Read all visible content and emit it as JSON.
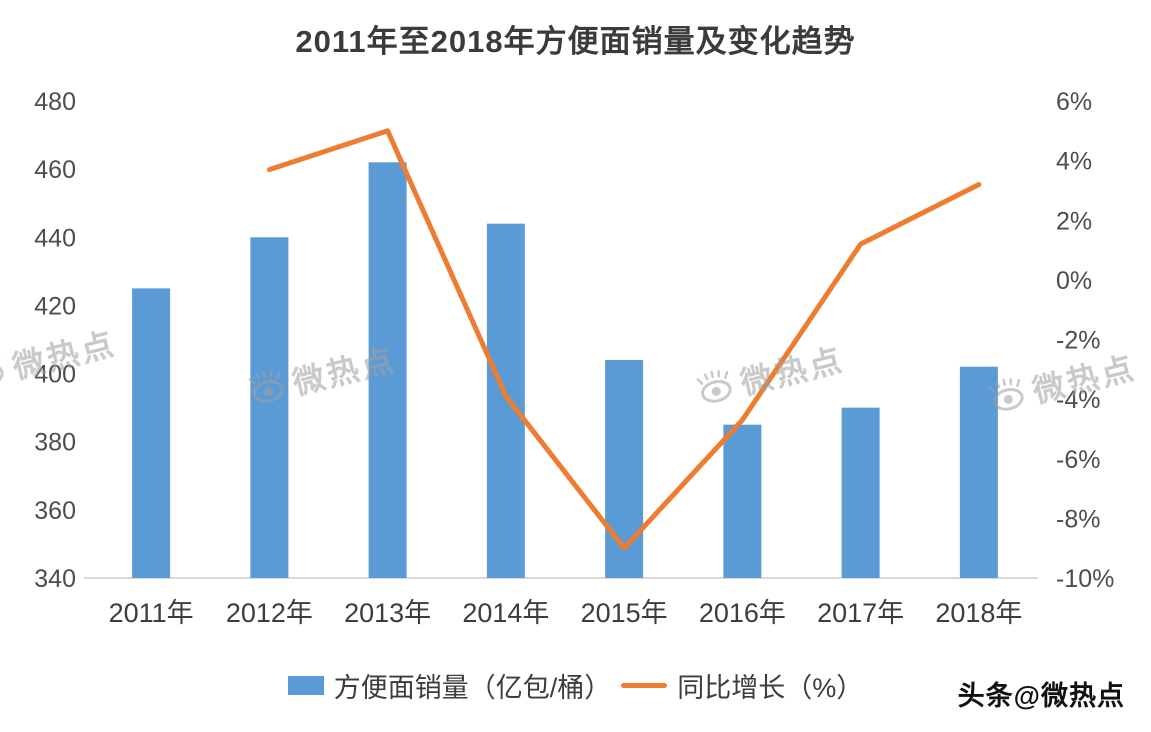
{
  "title": "2011年至2018年方便面销量及变化趋势",
  "watermark": {
    "text": "微热点"
  },
  "credit": "头条@微热点",
  "legend": {
    "sales_label": "方便面销量（亿包/桶）",
    "growth_label": "同比增长（%）"
  },
  "colors": {
    "bar": "#5B9BD5",
    "line": "#ED7D31",
    "axis_text": "#4d4d4d",
    "axis_line": "#d9d9d9"
  },
  "chart_data": {
    "type": "bar",
    "subtype": "bar+line combo, dual axis",
    "title": "2011年至2018年方便面销量及变化趋势",
    "categories": [
      "2011年",
      "2012年",
      "2013年",
      "2014年",
      "2015年",
      "2016年",
      "2017年",
      "2018年"
    ],
    "series": [
      {
        "name": "方便面销量（亿包/桶）",
        "type": "bar",
        "axis": "left",
        "color": "#5B9BD5",
        "values": [
          425,
          440,
          462,
          444,
          404,
          385,
          390,
          402
        ]
      },
      {
        "name": "同比增长（%）",
        "type": "line",
        "axis": "right",
        "color": "#ED7D31",
        "values": [
          null,
          3.7,
          5.0,
          -3.9,
          -9.0,
          -4.7,
          1.2,
          3.2
        ]
      }
    ],
    "left_axis": {
      "min": 340,
      "max": 480,
      "ticks": [
        340,
        360,
        380,
        400,
        420,
        440,
        460,
        480
      ]
    },
    "right_axis": {
      "min": -10,
      "max": 6,
      "unit": "%",
      "ticks": [
        -10,
        -8,
        -6,
        -4,
        -2,
        0,
        2,
        4,
        6
      ]
    },
    "grid": false,
    "legend_position": "bottom"
  }
}
